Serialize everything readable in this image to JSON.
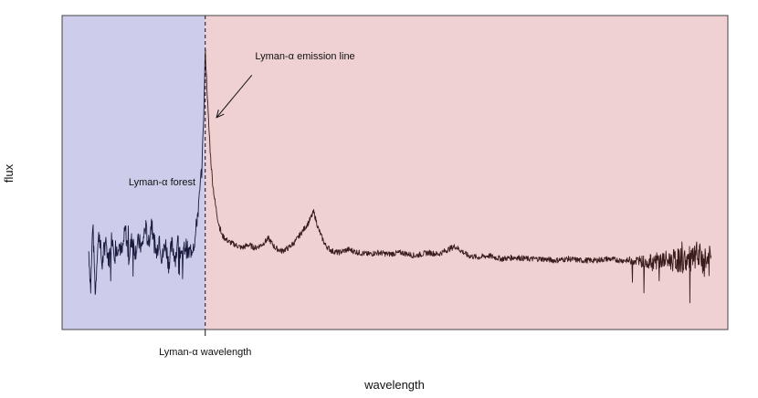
{
  "chart_data": {
    "type": "line",
    "title": "",
    "xlabel": "wavelength",
    "ylabel": "flux",
    "x_ticks_shown": false,
    "y_ticks_shown": false,
    "xlim": [
      0,
      100
    ],
    "ylim": [
      0,
      100
    ],
    "grid": false,
    "legend": "none",
    "regions": [
      {
        "name": "forest-region",
        "from": 0,
        "to": 21.5,
        "color": "#cdcdeb"
      },
      {
        "name": "redward-region",
        "from": 21.5,
        "to": 100,
        "color": "#efd0d3"
      }
    ],
    "marker": {
      "x": 21.5,
      "label": "Lyman-α wavelength",
      "style": "dashed"
    },
    "annotations": [
      {
        "text": "Lyman-α emission line",
        "x": 29,
        "y": 86
      },
      {
        "text": "Lyman-α forest",
        "x": 10,
        "y": 46
      }
    ],
    "arrow": {
      "from": [
        28.5,
        81
      ],
      "to": [
        23.2,
        67.5
      ]
    },
    "series": [
      {
        "color_blue": "#1a1a3e",
        "color_red": "#3a1c1c",
        "points": [
          [
            4.0,
            25
          ],
          [
            4.3,
            13
          ],
          [
            4.6,
            34
          ],
          [
            5.0,
            11
          ],
          [
            5.3,
            26
          ],
          [
            5.6,
            31
          ],
          [
            6.0,
            20
          ],
          [
            6.5,
            29
          ],
          [
            7.0,
            22
          ],
          [
            7.5,
            30
          ],
          [
            8.0,
            23
          ],
          [
            8.5,
            28
          ],
          [
            9.0,
            24
          ],
          [
            9.5,
            32
          ],
          [
            10.0,
            23
          ],
          [
            10.5,
            29
          ],
          [
            11.0,
            25
          ],
          [
            11.5,
            28
          ],
          [
            12.0,
            26
          ],
          [
            12.5,
            33
          ],
          [
            13.0,
            27
          ],
          [
            13.4,
            34.5
          ],
          [
            13.8,
            28
          ],
          [
            14.2,
            24
          ],
          [
            14.6,
            30
          ],
          [
            15.0,
            22
          ],
          [
            15.5,
            28
          ],
          [
            16.0,
            21
          ],
          [
            16.5,
            27
          ],
          [
            17.0,
            23
          ],
          [
            17.5,
            28
          ],
          [
            18.0,
            22
          ],
          [
            18.5,
            27
          ],
          [
            19.0,
            24
          ],
          [
            19.5,
            26
          ],
          [
            20.0,
            29
          ],
          [
            20.3,
            36
          ],
          [
            20.6,
            41
          ],
          [
            21.0,
            52
          ],
          [
            21.3,
            70
          ],
          [
            21.5,
            89
          ],
          [
            21.7,
            80
          ],
          [
            22.0,
            66
          ],
          [
            22.3,
            55
          ],
          [
            22.6,
            47
          ],
          [
            23.0,
            40
          ],
          [
            23.5,
            34
          ],
          [
            24.0,
            30
          ],
          [
            25.0,
            28
          ],
          [
            26.0,
            27
          ],
          [
            27.0,
            26
          ],
          [
            28.0,
            27
          ],
          [
            29.0,
            26
          ],
          [
            30.0,
            27
          ],
          [
            31.0,
            29
          ],
          [
            32.0,
            26
          ],
          [
            33.0,
            25
          ],
          [
            34.0,
            26
          ],
          [
            35.0,
            28
          ],
          [
            36.0,
            31
          ],
          [
            37.0,
            34
          ],
          [
            37.8,
            37.5
          ],
          [
            38.5,
            32
          ],
          [
            39.5,
            27
          ],
          [
            40.5,
            25
          ],
          [
            41.5,
            24.5
          ],
          [
            43.0,
            25.5
          ],
          [
            44.5,
            24.5
          ],
          [
            46.0,
            24
          ],
          [
            47.5,
            24.5
          ],
          [
            49.0,
            24
          ],
          [
            51.0,
            24.5
          ],
          [
            53.0,
            23.5
          ],
          [
            55.0,
            24.5
          ],
          [
            56.5,
            24
          ],
          [
            58.0,
            25.5
          ],
          [
            59.0,
            26.5
          ],
          [
            60.0,
            25
          ],
          [
            61.0,
            23.5
          ],
          [
            62.5,
            23
          ],
          [
            64.0,
            23.5
          ],
          [
            66.0,
            22.5
          ],
          [
            68.0,
            23
          ],
          [
            70.0,
            22.5
          ],
          [
            72.0,
            22.5
          ],
          [
            74.0,
            22
          ],
          [
            76.0,
            22.5
          ],
          [
            78.0,
            22
          ],
          [
            80.0,
            22
          ],
          [
            82.0,
            22.5
          ],
          [
            84.0,
            22
          ],
          [
            86.0,
            22
          ],
          [
            88.0,
            21.5
          ],
          [
            90.0,
            22
          ],
          [
            92.0,
            22
          ],
          [
            94.0,
            22
          ],
          [
            96.0,
            22.5
          ],
          [
            97.5,
            22
          ]
        ]
      }
    ]
  }
}
